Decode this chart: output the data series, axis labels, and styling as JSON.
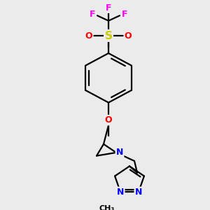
{
  "bg_color": "#ebebeb",
  "bond_color": "#000000",
  "F_color": "#ff00ff",
  "O_color": "#ff0000",
  "S_color": "#cccc00",
  "N_color": "#0000ff",
  "line_width": 1.6,
  "fig_w": 3.0,
  "fig_h": 3.0,
  "dpi": 100,
  "xlim": [
    0,
    300
  ],
  "ylim": [
    0,
    300
  ]
}
